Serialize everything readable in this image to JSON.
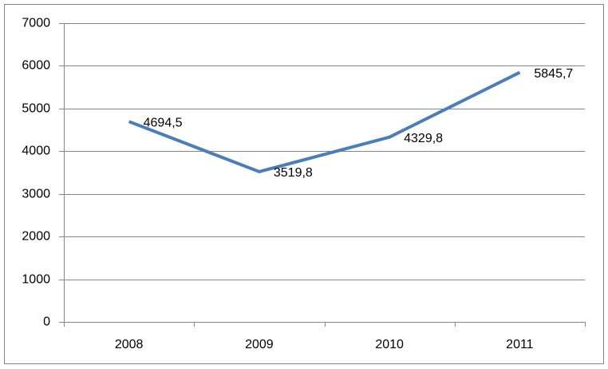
{
  "chart_data": {
    "type": "line",
    "categories": [
      "2008",
      "2009",
      "2010",
      "2011"
    ],
    "series": [
      {
        "color": "#4a7ebb",
        "values": [
          4694.5,
          3519.8,
          4329.8,
          5845.7
        ],
        "value_labels": [
          "4694,5",
          "3519,8",
          "4329,8",
          "5845,7"
        ]
      }
    ],
    "ylim": [
      0,
      7000
    ],
    "yticks": [
      0,
      1000,
      2000,
      3000,
      4000,
      5000,
      6000,
      7000
    ],
    "grid": true
  }
}
